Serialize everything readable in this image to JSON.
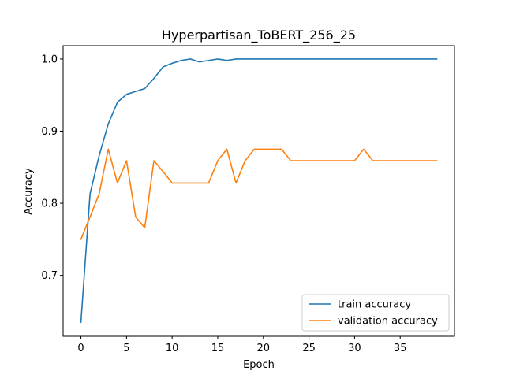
{
  "chart_data": {
    "type": "line",
    "title": "Hyperpartisan_ToBERT_256_25",
    "xlabel": "Epoch",
    "ylabel": "Accuracy",
    "xlim": [
      -1.95,
      40.95
    ],
    "ylim": [
      0.6155,
      1.0185
    ],
    "xticks": [
      0,
      5,
      10,
      15,
      20,
      25,
      30,
      35
    ],
    "yticks": [
      0.7,
      0.8,
      0.9,
      1.0
    ],
    "ytick_labels": [
      "0.7",
      "0.8",
      "0.9",
      "1.0"
    ],
    "grid": false,
    "legend_position": "lower-right",
    "x": [
      0,
      1,
      2,
      3,
      4,
      5,
      6,
      7,
      8,
      9,
      10,
      11,
      12,
      13,
      14,
      15,
      16,
      17,
      18,
      19,
      20,
      21,
      22,
      23,
      24,
      25,
      26,
      27,
      28,
      29,
      30,
      31,
      32,
      33,
      34,
      35,
      36,
      37,
      38,
      39
    ],
    "series": [
      {
        "name": "train accuracy",
        "color": "#1f77b4",
        "values": [
          0.635,
          0.813,
          0.866,
          0.91,
          0.94,
          0.951,
          0.955,
          0.959,
          0.973,
          0.989,
          0.994,
          0.998,
          1.0,
          0.996,
          0.998,
          1.0,
          0.998,
          1.0,
          1.0,
          1.0,
          1.0,
          1.0,
          1.0,
          1.0,
          1.0,
          1.0,
          1.0,
          1.0,
          1.0,
          1.0,
          1.0,
          1.0,
          1.0,
          1.0,
          1.0,
          1.0,
          1.0,
          1.0,
          1.0,
          1.0
        ]
      },
      {
        "name": "validation accuracy",
        "color": "#ff7f0e",
        "values": [
          0.75,
          0.781,
          0.813,
          0.875,
          0.828,
          0.859,
          0.781,
          0.766,
          0.859,
          0.844,
          0.828,
          0.828,
          0.828,
          0.828,
          0.828,
          0.859,
          0.875,
          0.828,
          0.859,
          0.875,
          0.875,
          0.875,
          0.875,
          0.859,
          0.859,
          0.859,
          0.859,
          0.859,
          0.859,
          0.859,
          0.859,
          0.875,
          0.859,
          0.859,
          0.859,
          0.859,
          0.859,
          0.859,
          0.859,
          0.859
        ]
      }
    ]
  }
}
